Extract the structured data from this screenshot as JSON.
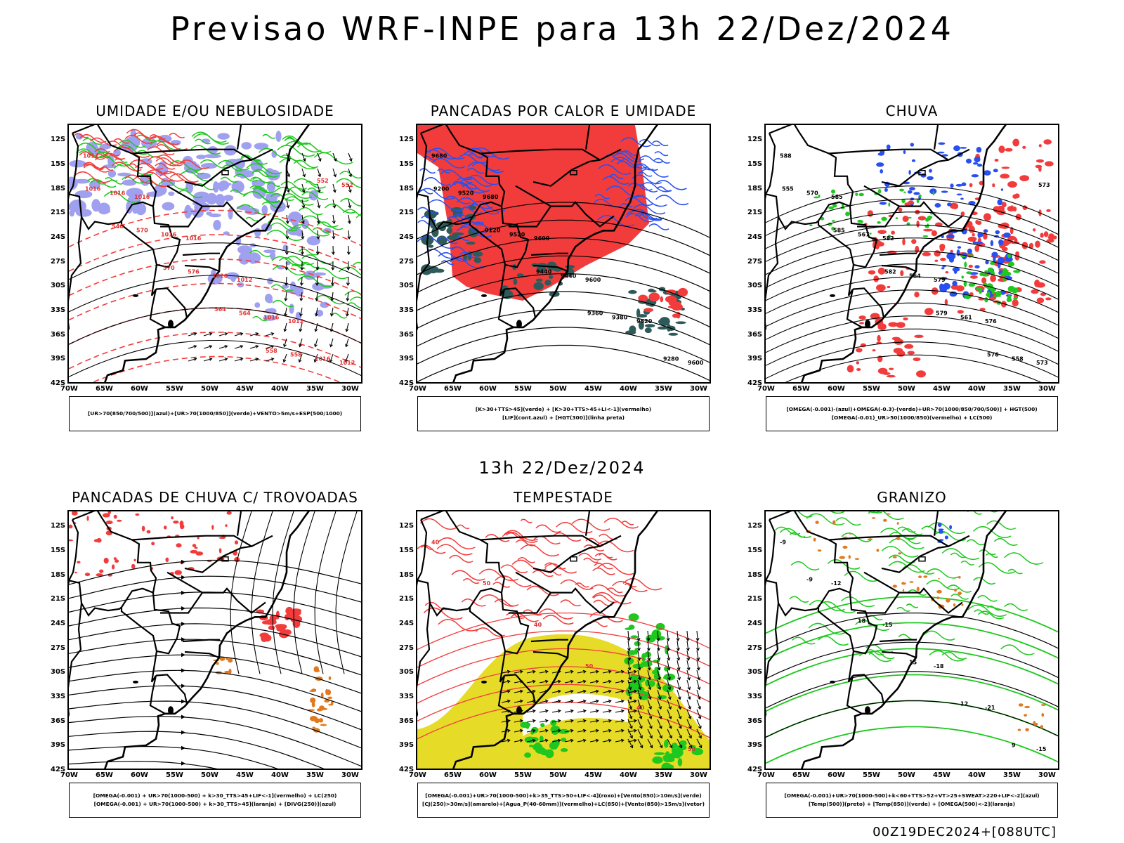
{
  "title": "Previsao WRF-INPE  para 13h 22/Dez/2024",
  "middle_title": "13h 22/Dez/2024",
  "footer": "00Z19DEC2024+[088UTC]",
  "lat_ticks": [
    "12S",
    "15S",
    "18S",
    "21S",
    "24S",
    "27S",
    "30S",
    "33S",
    "36S",
    "39S",
    "42S"
  ],
  "lon_ticks": [
    "70W",
    "65W",
    "60W",
    "55W",
    "50W",
    "45W",
    "40W",
    "35W",
    "30W"
  ],
  "panels": [
    {
      "title": "UMIDADE E/OU NEBULOSIDADE",
      "legend": [
        "[UR>70(850/700/500)](azul)+[UR>70(1000/850)](verde)+VENTO>5m/s+ESP(500/1000)"
      ],
      "contour_labels": [
        "1012",
        "1016",
        "1016",
        "1012",
        "1012",
        "1012",
        "1016",
        "1016",
        "1020",
        "1016",
        "1016",
        "1016",
        "570",
        "576",
        "564",
        "558",
        "552",
        "546",
        "570",
        "564",
        "558",
        "552"
      ]
    },
    {
      "title": "PANCADAS POR CALOR E UMIDADE",
      "legend": [
        "[K>30+TTS>45](verde) + [K>30+TTS>45+LI<-1](vermelho)",
        "[LIF](cont.azul) + [HGT(300)](linha preta)"
      ],
      "contour_labels": [
        "9680",
        "9680",
        "9600",
        "9600",
        "9520",
        "9600",
        "9520",
        "9520",
        "9440",
        "9380",
        "9280",
        "9200",
        "9120",
        "9440",
        "9360"
      ]
    },
    {
      "title": "CHUVA",
      "legend": [
        "[OMEGA(-0.001)-(azul)+OMEGA(-0.3)-(verde)+UR>70(1000/850/700/500)] + HGT(500)",
        "[OMEGA(-0.01)_UR>50(1000/850)(vermelho) + LC(500)"
      ],
      "contour_labels": [
        "588",
        "585",
        "582",
        "579",
        "576",
        "573",
        "570",
        "567",
        "564",
        "561",
        "558",
        "555",
        "585",
        "582",
        "579",
        "576",
        "573"
      ]
    },
    {
      "title": "PANCADAS DE CHUVA C/ TROVOADAS",
      "legend": [
        "[OMEGA(-0.001) + UR>70(1000-500) + k>30_TTS>45+LIF<-1](vermelho) + LC(250)",
        "[OMEGA(-0.001) + UR>70(1000-500) + k>30_TTS>45](laranja) + [DIVG(250)](azul)"
      ],
      "contour_labels": []
    },
    {
      "title": "TEMPESTADE",
      "legend": [
        "[OMEGA(-0.001)+UR>70(1000-500)+k>35_TTS>50+LIF<-4](roxo)+[Vento(850)>10m/s](verde)",
        "[CJ(250)>30m/s](amarelo)+[Agua_P(40-60mm)](vermelho)+LC(850)+[Vento(850)>15m/s](vetor)"
      ],
      "contour_labels": [
        "40",
        "50",
        "40",
        "50",
        "40",
        "50"
      ]
    },
    {
      "title": "GRANIZO",
      "legend": [
        "[OMEGA(-0.001)+UR>70(1000-500)+k<60+TTS>52+VT>25+SWEAT>220+LIF<-2](azul)",
        "[Temp(500)](preto) + [Temp(850)](verde) + [OMEGA(500)<-2](laranja)"
      ],
      "contour_labels": [
        "-9",
        "-12",
        "-15",
        "-18",
        "-21",
        "-15",
        "-9",
        "18",
        "15",
        "12",
        "9"
      ]
    }
  ],
  "colors": {
    "red": "#f23c3c",
    "green": "#1ec81e",
    "blue": "#2850f0",
    "lavender": "#a0a0f0",
    "darkteal": "#2f5a5a",
    "yellow": "#e6dc28",
    "orange": "#e07a20",
    "purple": "#8a2be2"
  }
}
